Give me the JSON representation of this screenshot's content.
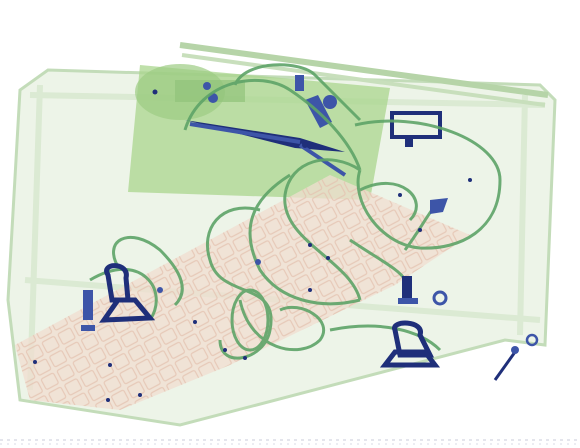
{
  "colors": {
    "background": "#ffffff",
    "bag_outline": "#bcd8b0",
    "bag_fill": "#e7f1e1",
    "circuit_board": "#a9d58e",
    "keyboard": "#f0ddd0",
    "cable": "#5ea468",
    "metal_dark": "#1f2f7a",
    "metal_mid": "#3d55a8"
  }
}
